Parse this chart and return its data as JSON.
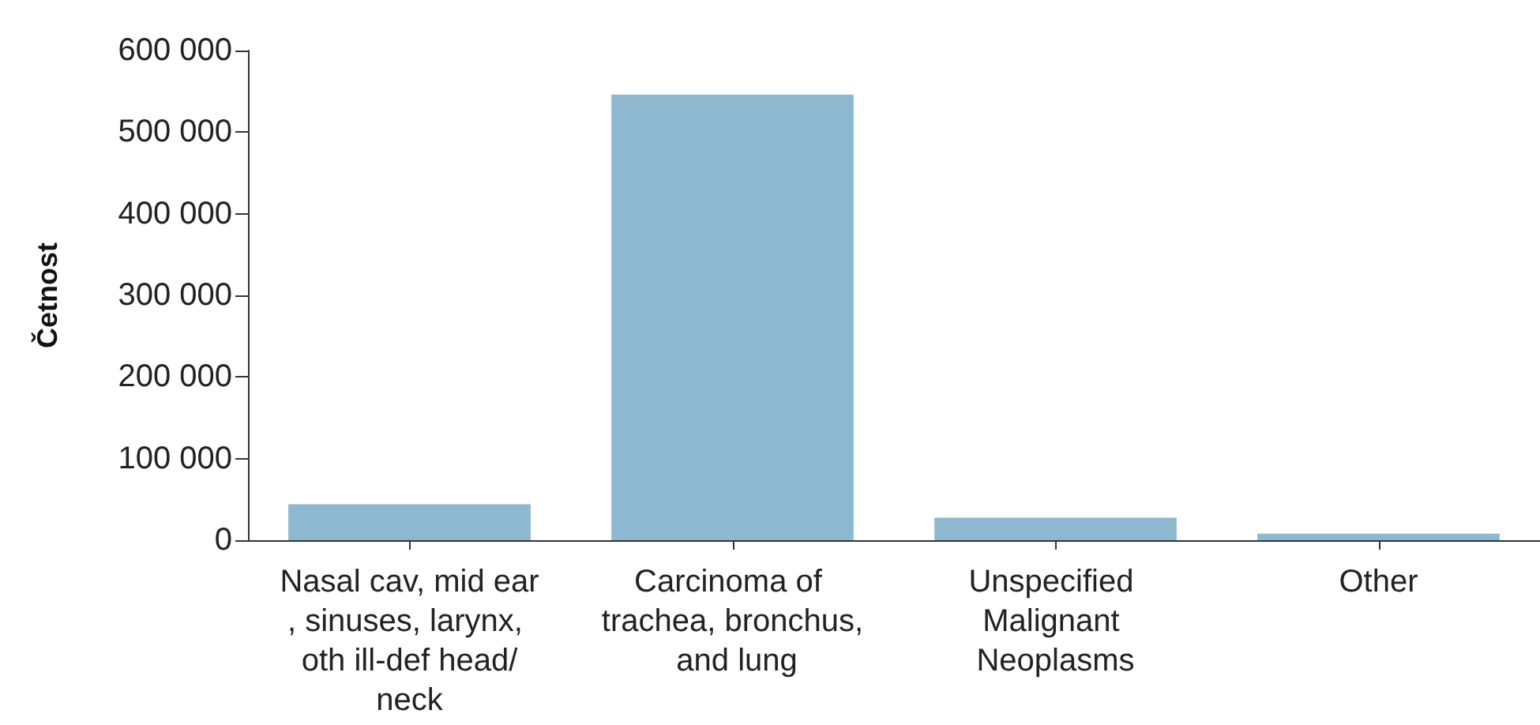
{
  "chart_data": {
    "type": "bar",
    "ylabel": "Četnost",
    "categories": [
      "Nasal cav, mid ear, sinuses, larynx, oth ill-def head/neck",
      "Carcinoma of trachea, bronchus, and lung",
      "Unspecified Malignant Neoplasms",
      "Other"
    ],
    "values": [
      44000,
      546000,
      27500,
      8000
    ],
    "color": "#8db8d0",
    "ylim": [
      0,
      600000
    ],
    "yticks": [
      0,
      100000,
      200000,
      300000,
      400000,
      500000,
      600000
    ],
    "grid": false
  }
}
